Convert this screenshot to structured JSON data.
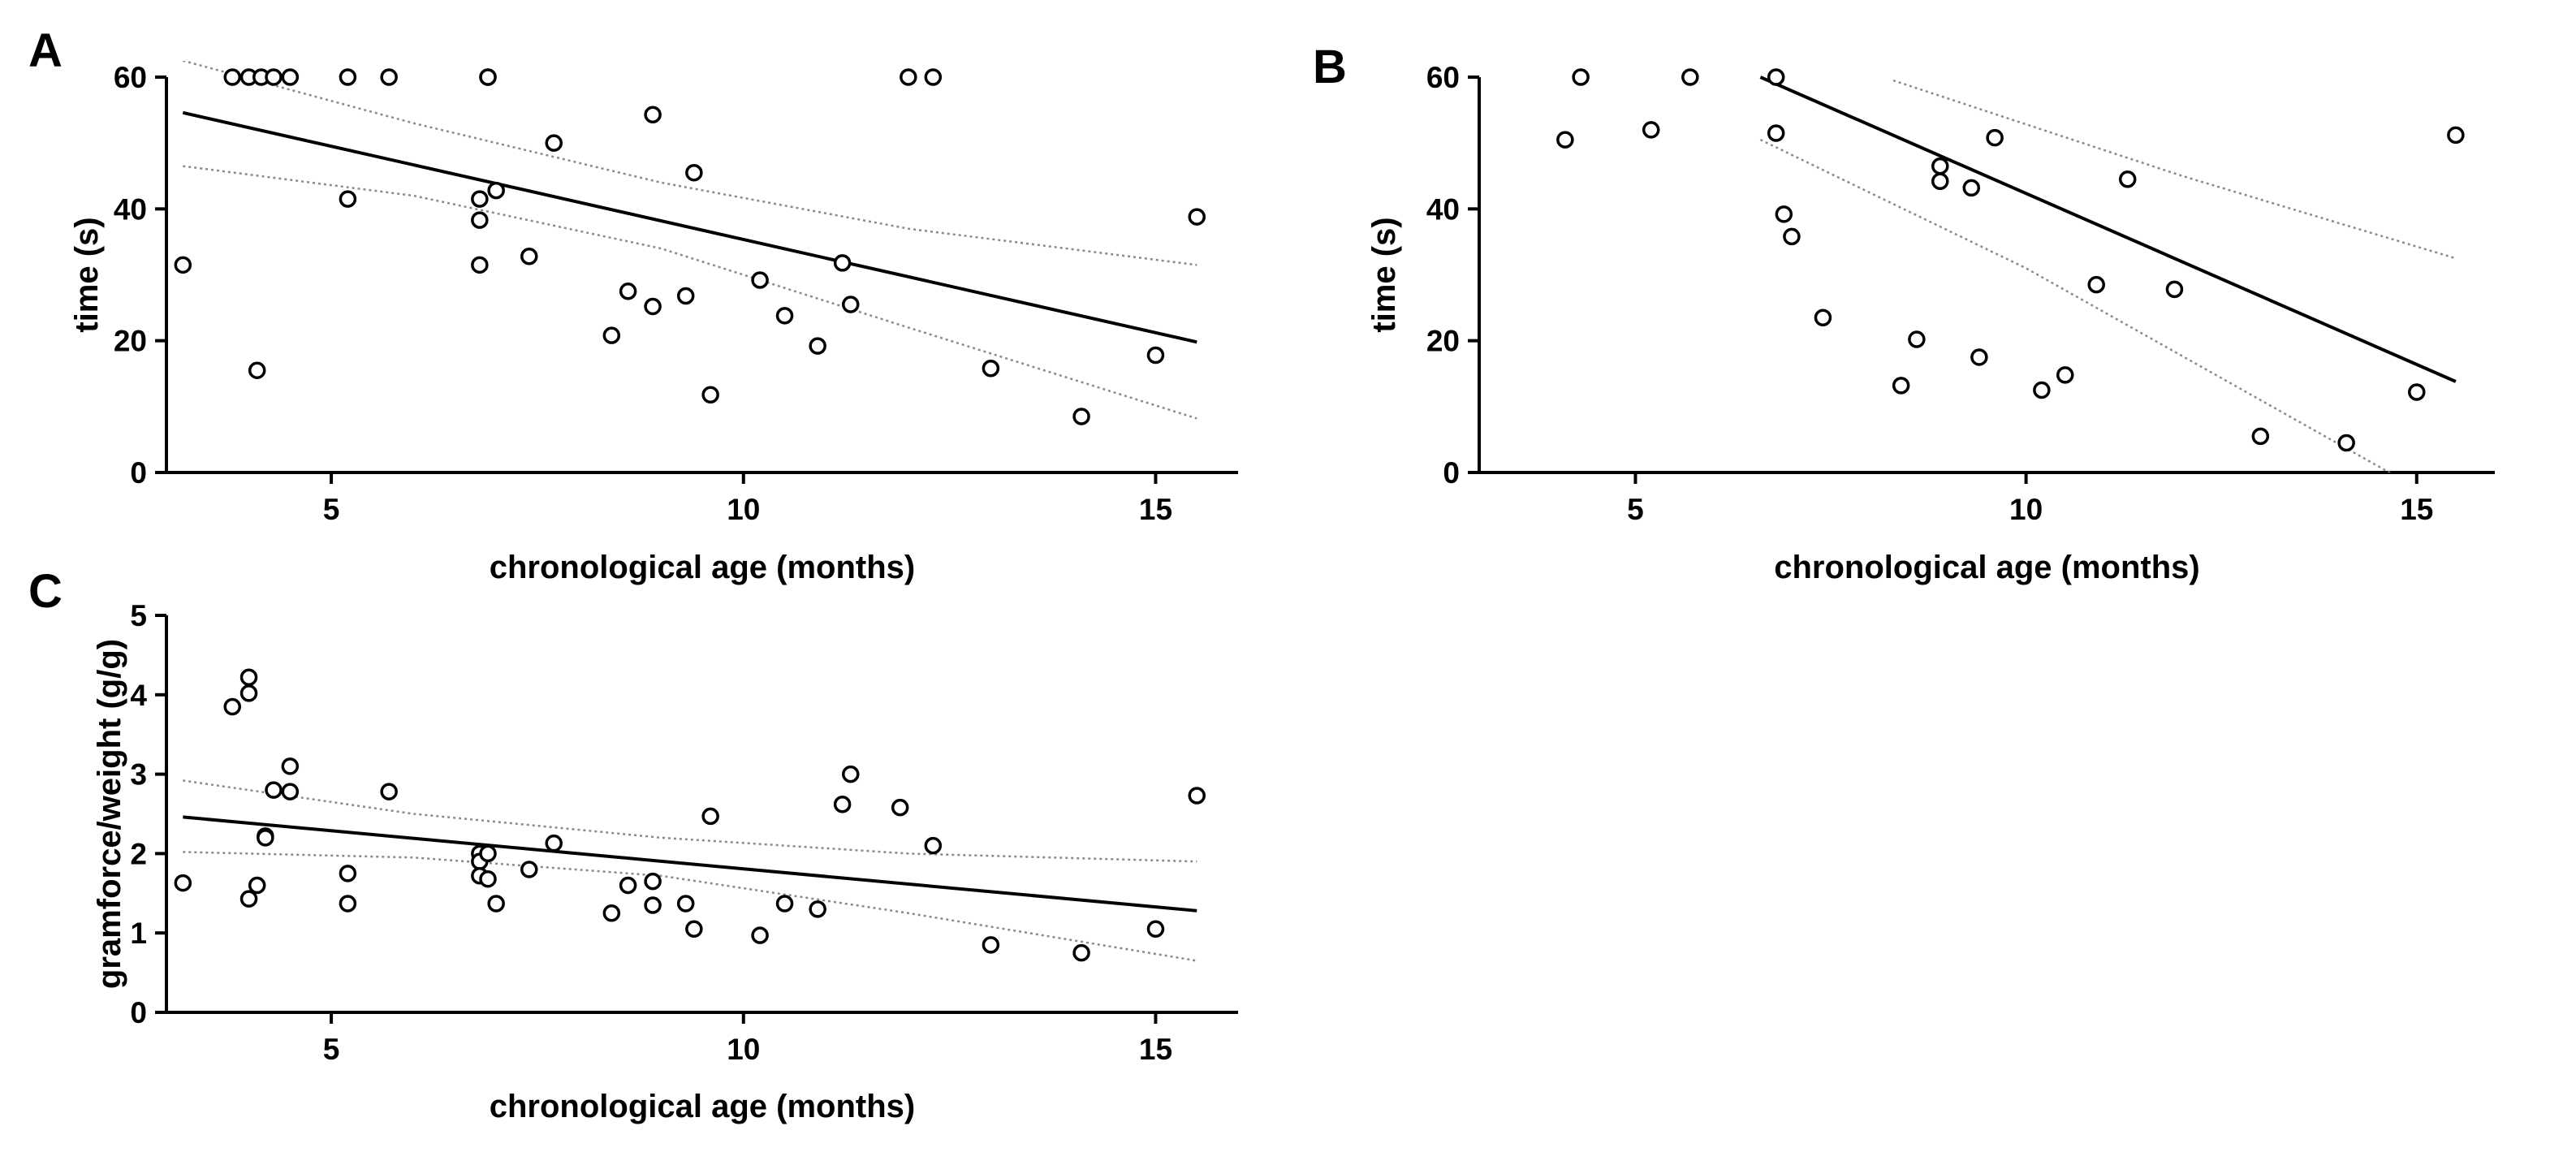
{
  "chart_data": [
    {
      "panel": "A",
      "type": "scatter",
      "title": "",
      "xlabel": "chronological age (months)",
      "ylabel": "time (s)",
      "xlim": [
        3,
        16
      ],
      "ylim": [
        0,
        60
      ],
      "xticks": [
        5,
        10,
        15
      ],
      "yticks": [
        0,
        20,
        40,
        60
      ],
      "points": [
        [
          3.2,
          31.5
        ],
        [
          3.8,
          60
        ],
        [
          4.0,
          60
        ],
        [
          4.15,
          60
        ],
        [
          4.3,
          60
        ],
        [
          4.5,
          60
        ],
        [
          4.1,
          15.5
        ],
        [
          5.2,
          60
        ],
        [
          5.2,
          41.5
        ],
        [
          5.7,
          60
        ],
        [
          6.9,
          60
        ],
        [
          6.9,
          60
        ],
        [
          6.8,
          41.5
        ],
        [
          6.8,
          38.3
        ],
        [
          6.8,
          31.5
        ],
        [
          7.0,
          42.8
        ],
        [
          7.4,
          32.8
        ],
        [
          7.7,
          50
        ],
        [
          8.4,
          20.8
        ],
        [
          8.6,
          27.5
        ],
        [
          8.9,
          54.3
        ],
        [
          8.9,
          25.2
        ],
        [
          9.3,
          26.8
        ],
        [
          9.4,
          45.5
        ],
        [
          9.6,
          11.8
        ],
        [
          10.2,
          29.2
        ],
        [
          10.5,
          23.8
        ],
        [
          10.9,
          19.2
        ],
        [
          11.2,
          31.8
        ],
        [
          11.3,
          25.5
        ],
        [
          12.0,
          60
        ],
        [
          12.3,
          60
        ],
        [
          13.0,
          15.8
        ],
        [
          14.1,
          8.5
        ],
        [
          15.0,
          17.8
        ],
        [
          15.5,
          38.8
        ]
      ],
      "regression": {
        "x": [
          3.2,
          15.5
        ],
        "y": [
          54.6,
          19.8
        ]
      },
      "ci_upper": {
        "x": [
          3.2,
          6,
          9,
          12,
          15.5
        ],
        "y": [
          62.5,
          53,
          44,
          37,
          31.5
        ]
      },
      "ci_lower": {
        "x": [
          3.2,
          6,
          9,
          12,
          15.5
        ],
        "y": [
          46.5,
          42,
          34,
          22,
          8.2
        ]
      }
    },
    {
      "panel": "B",
      "type": "scatter",
      "title": "",
      "xlabel": "chronological age (months)",
      "ylabel": "time (s)",
      "xlim": [
        3,
        16
      ],
      "ylim": [
        0,
        60
      ],
      "xticks": [
        5,
        10,
        15
      ],
      "yticks": [
        0,
        20,
        40,
        60
      ],
      "points": [
        [
          4.1,
          50.5
        ],
        [
          4.3,
          60
        ],
        [
          5.2,
          52
        ],
        [
          5.7,
          60
        ],
        [
          6.8,
          60
        ],
        [
          6.8,
          51.5
        ],
        [
          6.9,
          39.2
        ],
        [
          7.0,
          35.8
        ],
        [
          7.4,
          23.5
        ],
        [
          8.4,
          13.2
        ],
        [
          8.6,
          20.2
        ],
        [
          8.9,
          46.5
        ],
        [
          8.9,
          44.2
        ],
        [
          9.3,
          43.2
        ],
        [
          9.4,
          17.5
        ],
        [
          9.6,
          50.8
        ],
        [
          10.2,
          12.5
        ],
        [
          10.5,
          14.8
        ],
        [
          10.9,
          28.5
        ],
        [
          11.3,
          44.5
        ],
        [
          11.9,
          27.8
        ],
        [
          13.0,
          5.5
        ],
        [
          14.1,
          4.5
        ],
        [
          15.0,
          12.2
        ],
        [
          15.5,
          51.2
        ]
      ],
      "regression": {
        "x": [
          6.6,
          15.5
        ],
        "y": [
          60,
          13.8
        ]
      },
      "ci_upper": {
        "x": [
          8.3,
          12,
          15.5
        ],
        "y": [
          59.5,
          45,
          32.5
        ]
      },
      "ci_lower": {
        "x": [
          6.6,
          10,
          14.8
        ],
        "y": [
          50.5,
          31,
          -1
        ]
      }
    },
    {
      "panel": "C",
      "type": "scatter",
      "title": "",
      "xlabel": "chronological age (months)",
      "ylabel": "gramforce/weight (g/g)",
      "xlim": [
        3,
        16
      ],
      "ylim": [
        0,
        5
      ],
      "xticks": [
        5,
        10,
        15
      ],
      "yticks": [
        0,
        1,
        2,
        3,
        4,
        5
      ],
      "points": [
        [
          3.2,
          1.63
        ],
        [
          3.8,
          3.85
        ],
        [
          4.0,
          4.02
        ],
        [
          4.0,
          4.22
        ],
        [
          4.0,
          1.43
        ],
        [
          4.1,
          1.6
        ],
        [
          4.2,
          2.22
        ],
        [
          4.2,
          2.2
        ],
        [
          4.3,
          2.8
        ],
        [
          4.5,
          3.1
        ],
        [
          4.5,
          2.78
        ],
        [
          5.2,
          1.75
        ],
        [
          5.2,
          1.37
        ],
        [
          5.7,
          2.78
        ],
        [
          6.8,
          2.0
        ],
        [
          6.8,
          1.9
        ],
        [
          6.8,
          1.72
        ],
        [
          6.9,
          2.0
        ],
        [
          6.9,
          1.68
        ],
        [
          7.0,
          1.37
        ],
        [
          7.4,
          1.8
        ],
        [
          7.7,
          2.13
        ],
        [
          8.4,
          1.25
        ],
        [
          8.6,
          1.6
        ],
        [
          8.9,
          1.35
        ],
        [
          8.9,
          1.65
        ],
        [
          9.3,
          1.37
        ],
        [
          9.4,
          1.05
        ],
        [
          9.6,
          2.47
        ],
        [
          10.2,
          0.97
        ],
        [
          10.5,
          1.37
        ],
        [
          10.9,
          1.3
        ],
        [
          11.2,
          2.62
        ],
        [
          11.3,
          3.0
        ],
        [
          11.9,
          2.58
        ],
        [
          12.3,
          2.1
        ],
        [
          13.0,
          0.85
        ],
        [
          14.1,
          0.75
        ],
        [
          15.0,
          1.05
        ],
        [
          15.5,
          2.73
        ]
      ],
      "regression": {
        "x": [
          3.2,
          15.5
        ],
        "y": [
          2.46,
          1.28
        ]
      },
      "ci_upper": {
        "x": [
          3.2,
          6,
          9,
          12,
          15.5
        ],
        "y": [
          2.92,
          2.5,
          2.2,
          2.0,
          1.9
        ]
      },
      "ci_lower": {
        "x": [
          3.2,
          6,
          9,
          12,
          15.5
        ],
        "y": [
          2.02,
          1.95,
          1.72,
          1.25,
          0.65
        ]
      }
    }
  ]
}
